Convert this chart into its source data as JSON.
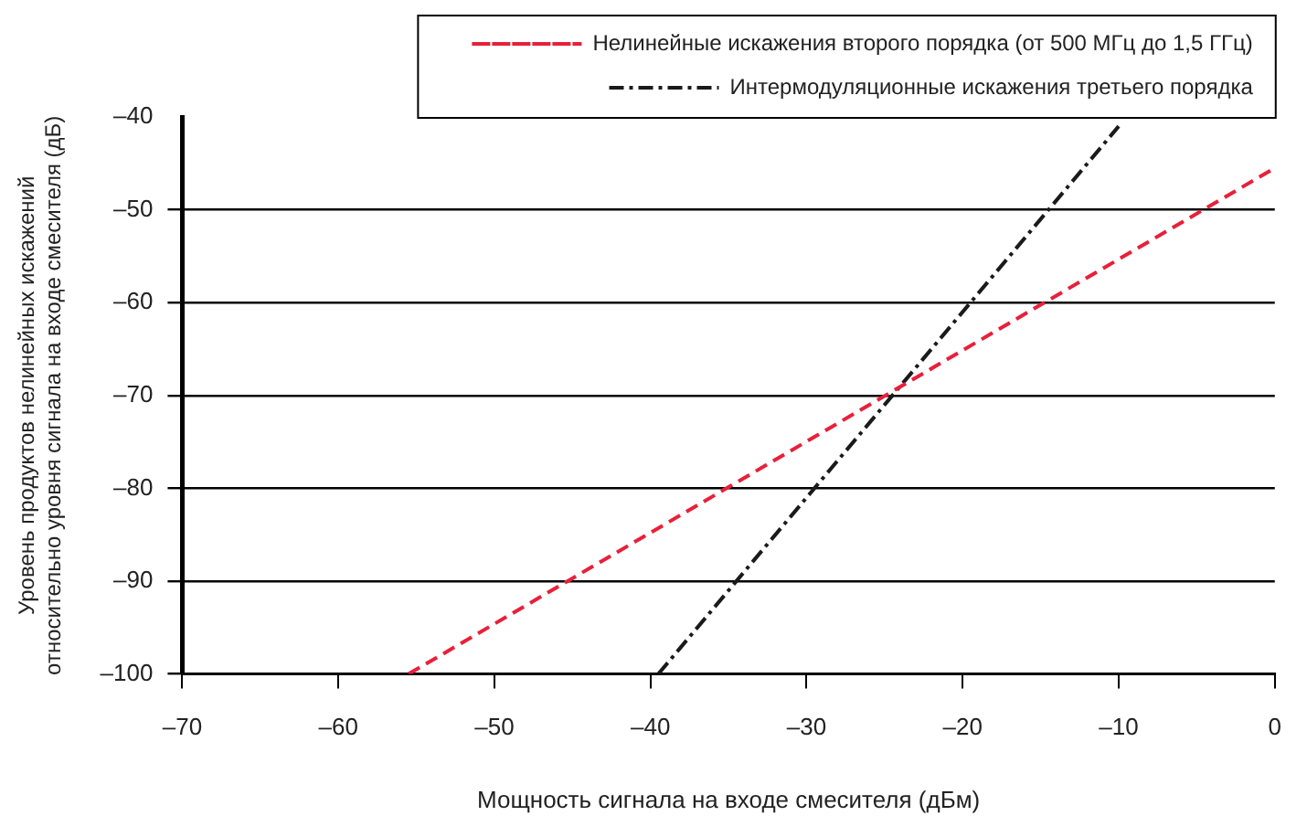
{
  "chart_data": {
    "type": "line",
    "xlabel": "Мощность сигнала на входе смесителя (дБм)",
    "ylabel": "Уровень продуктов нелинейных искажений относительно уровня сигнала на входе смесителя (дБ)",
    "xlim": [
      -70,
      0
    ],
    "xticks": [
      {
        "value": -70,
        "label": "–70"
      },
      {
        "value": -60,
        "label": "–60"
      },
      {
        "value": -50,
        "label": "–50"
      },
      {
        "value": -40,
        "label": "–40"
      },
      {
        "value": -30,
        "label": "–30"
      },
      {
        "value": -20,
        "label": "–20"
      },
      {
        "value": -10,
        "label": "–10"
      },
      0
    ],
    "ylim": [
      -100,
      -40
    ],
    "yticks": [
      {
        "value": -100,
        "label": "–100"
      },
      {
        "value": -90,
        "label": "–90"
      },
      {
        "value": -80,
        "label": "–80"
      },
      {
        "value": -70,
        "label": "–70"
      },
      {
        "value": -60,
        "label": "–60"
      },
      {
        "value": -50,
        "label": "–50"
      },
      {
        "value": -40,
        "label": "–40"
      }
    ],
    "grid": "y",
    "legend": "top right",
    "marker": "none",
    "series": [
      {
        "name": "Нелинейные искажения второго порядка (от 500 МГц до 1,5 ГГц)",
        "color": "#e8203a",
        "line_style": "dashed",
        "x": [
          -55.5,
          0
        ],
        "values": [
          -100,
          -45.5
        ]
      },
      {
        "name": "Интермодуляционные искажения третьего порядка",
        "color": "#1a1a1a",
        "line_style": "dashdot",
        "x": [
          -39.5,
          -10
        ],
        "values": [
          -100,
          -41
        ]
      }
    ]
  }
}
